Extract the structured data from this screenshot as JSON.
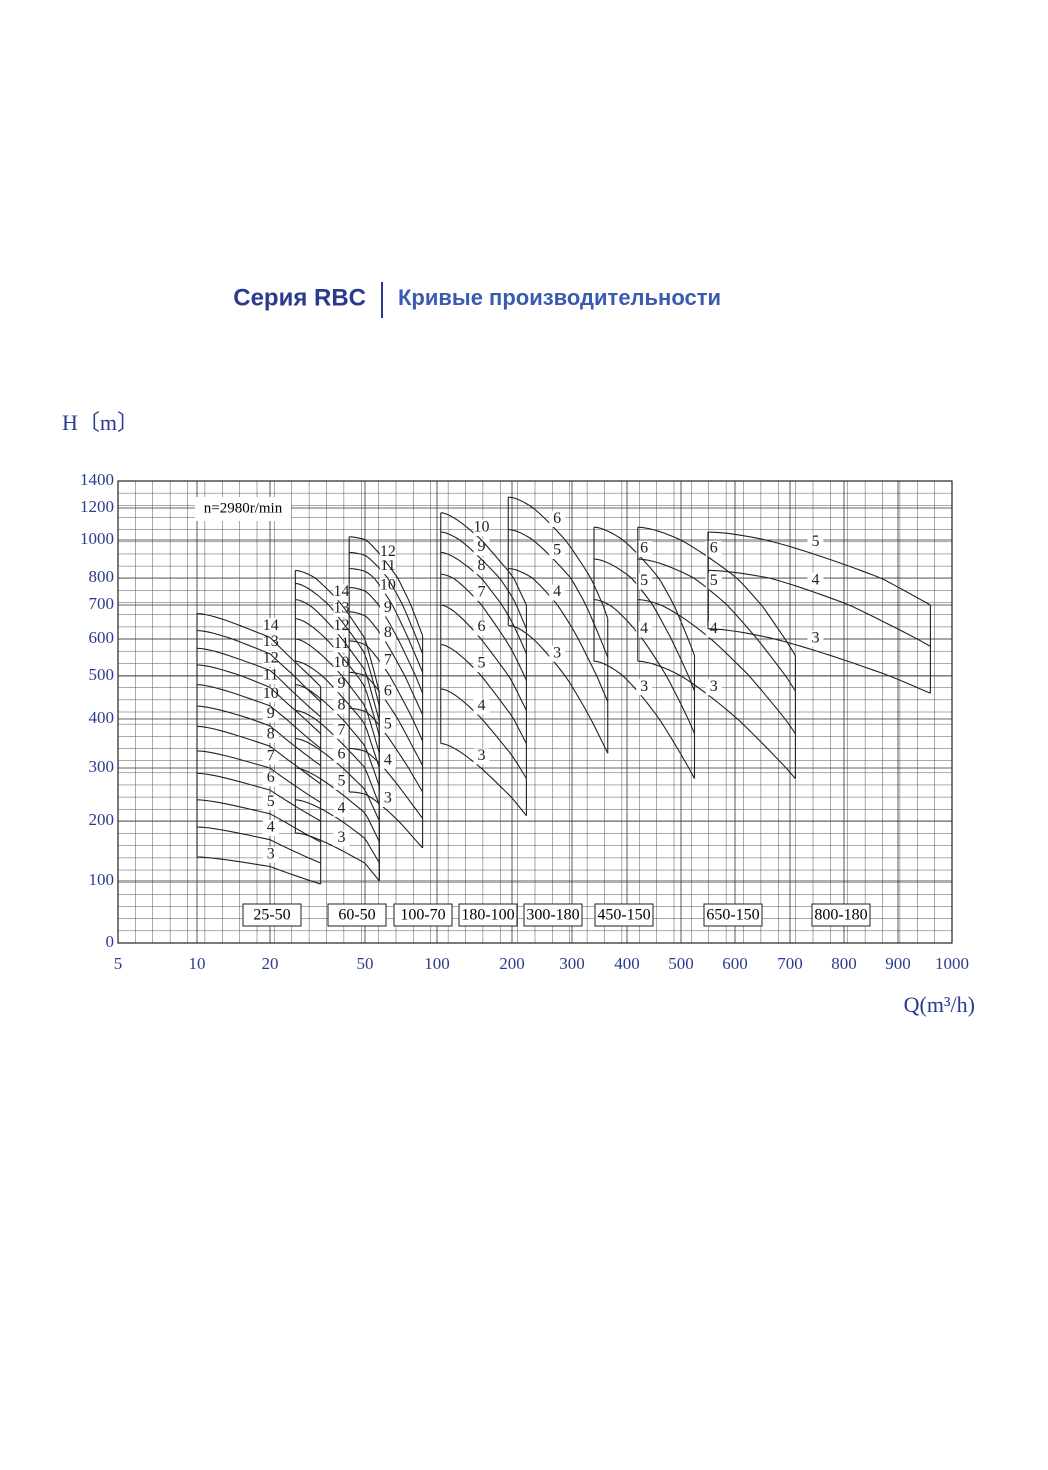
{
  "chart_data": {
    "type": "pump-curves",
    "title": "Серия RBC",
    "subtitle": "Кривые производительности",
    "y_label": "H〔m〕",
    "x_label": "Q(m³/h)",
    "annotation": "n=2980r/min",
    "xticks": [
      5,
      10,
      20,
      50,
      100,
      200,
      300,
      400,
      500,
      600,
      700,
      800,
      900,
      1000
    ],
    "yticks": [
      0,
      100,
      200,
      300,
      400,
      500,
      600,
      700,
      800,
      1000,
      1200,
      1400
    ],
    "xlim": [
      5,
      1000
    ],
    "ylim": [
      0,
      1400
    ],
    "grid": true,
    "color": "#222222",
    "tick_color": "#2b3a8f",
    "families": [
      {
        "name": "25-50",
        "q": [
          10,
          36
        ],
        "stages": [
          3,
          4,
          5,
          6,
          7,
          8,
          9,
          10,
          11,
          12,
          13,
          14
        ],
        "h_start": [
          140,
          190,
          240,
          290,
          335,
          385,
          430,
          480,
          530,
          575,
          625,
          675
        ],
        "h_end": [
          95,
          130,
          165,
          200,
          235,
          270,
          305,
          340,
          370,
          405,
          440,
          475
        ]
      },
      {
        "name": "60-50",
        "q": [
          28,
          60
        ],
        "stages": [
          3,
          4,
          5,
          6,
          7,
          8,
          9,
          10,
          11,
          12,
          13,
          14
        ],
        "h_start": [
          180,
          240,
          300,
          360,
          420,
          480,
          540,
          600,
          660,
          720,
          780,
          840
        ],
        "h_end": [
          100,
          130,
          165,
          200,
          230,
          265,
          300,
          330,
          365,
          395,
          430,
          460
        ]
      },
      {
        "name": "100-70",
        "q": [
          45,
          90
        ],
        "stages": [
          3,
          4,
          5,
          6,
          7,
          8,
          9,
          10,
          11,
          12
        ],
        "h_start": [
          255,
          340,
          425,
          510,
          595,
          680,
          765,
          850,
          935,
          1020
        ],
        "h_end": [
          155,
          205,
          255,
          305,
          355,
          410,
          460,
          510,
          560,
          610
        ]
      },
      {
        "name": "180-100",
        "q": [
          105,
          224
        ],
        "stages": [
          3,
          4,
          5,
          6,
          7,
          8,
          9,
          10
        ],
        "h_start": [
          350,
          470,
          585,
          700,
          820,
          935,
          1050,
          1170
        ],
        "h_end": [
          210,
          280,
          350,
          420,
          490,
          560,
          630,
          700
        ]
      },
      {
        "name": "300-180",
        "q": [
          195,
          365
        ],
        "stages": [
          3,
          4,
          5,
          6
        ],
        "h_start": [
          640,
          850,
          1065,
          1280
        ],
        "h_end": [
          330,
          440,
          550,
          660
        ]
      },
      {
        "name": "450-150",
        "q": [
          340,
          525
        ],
        "stages": [
          3,
          4,
          5,
          6
        ],
        "h_start": [
          540,
          720,
          900,
          1080
        ],
        "h_end": [
          280,
          370,
          465,
          555
        ]
      },
      {
        "name": "650-150",
        "q": [
          420,
          710
        ],
        "stages": [
          3,
          4,
          5,
          6
        ],
        "h_start": [
          540,
          720,
          900,
          1080
        ],
        "h_end": [
          280,
          370,
          465,
          555
        ]
      },
      {
        "name": "800-180",
        "q": [
          550,
          960
        ],
        "stages": [
          3,
          4,
          5
        ],
        "h_start": [
          630,
          840,
          1050
        ],
        "h_end": [
          460,
          580,
          700
        ]
      }
    ]
  }
}
